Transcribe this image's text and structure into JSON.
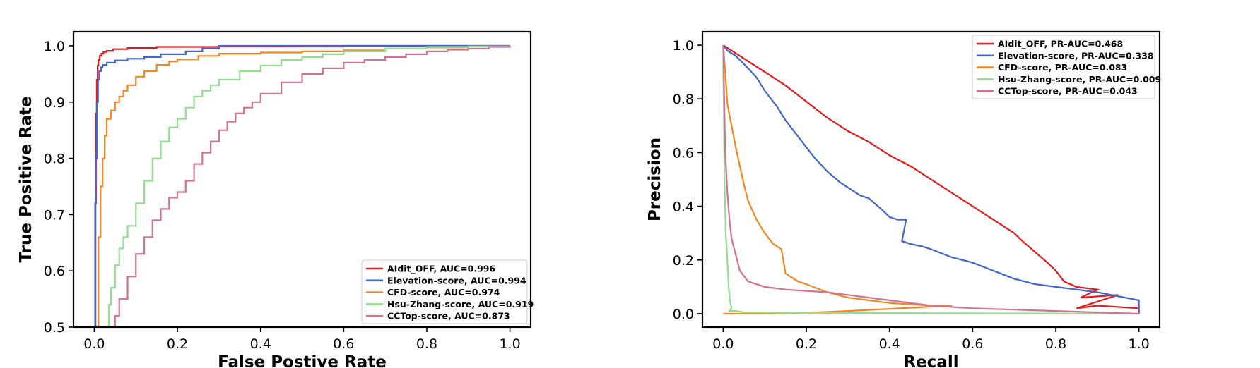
{
  "chart_data": [
    {
      "type": "line",
      "xlabel": "False Postive Rate",
      "ylabel": "True Positive Rate",
      "xlim": [
        -0.05,
        1.05
      ],
      "ylim": [
        0.5,
        1.025
      ],
      "xticks": [
        0.0,
        0.2,
        0.4,
        0.6,
        0.8,
        1.0
      ],
      "xtick_labels": [
        "0.0",
        "0.2",
        "0.4",
        "0.6",
        "0.8",
        "1.0"
      ],
      "yticks": [
        0.5,
        0.6,
        0.7,
        0.8,
        0.9,
        1.0
      ],
      "ytick_labels": [
        "0.5",
        "0.6",
        "0.7",
        "0.8",
        "0.9",
        "1.0"
      ],
      "legend_position": "lower right",
      "step": true,
      "series": [
        {
          "name": "AIdit_OFF, AUC=0.996",
          "color": "#e31a1c",
          "x": [
            0.0,
            0.002,
            0.004,
            0.006,
            0.008,
            0.01,
            0.013,
            0.017,
            0.022,
            0.03,
            0.045,
            0.08,
            0.15,
            0.3,
            0.6,
            1.0
          ],
          "y": [
            0.5,
            0.72,
            0.88,
            0.94,
            0.965,
            0.975,
            0.982,
            0.986,
            0.989,
            0.991,
            0.994,
            0.996,
            0.998,
            0.999,
            1.0,
            1.0
          ]
        },
        {
          "name": "Elevation-score, AUC=0.994",
          "color": "#3e65d0",
          "x": [
            0.0,
            0.003,
            0.006,
            0.009,
            0.012,
            0.016,
            0.02,
            0.03,
            0.05,
            0.08,
            0.12,
            0.16,
            0.22,
            0.26,
            0.3,
            0.5,
            0.75,
            1.0
          ],
          "y": [
            0.5,
            0.8,
            0.9,
            0.94,
            0.955,
            0.962,
            0.966,
            0.97,
            0.974,
            0.977,
            0.98,
            0.985,
            0.99,
            0.995,
            1.0,
            1.0,
            1.0,
            1.0
          ]
        },
        {
          "name": "CFD-score, AUC=0.974",
          "color": "#f5871f",
          "x": [
            0.0,
            0.01,
            0.015,
            0.02,
            0.025,
            0.03,
            0.04,
            0.05,
            0.06,
            0.07,
            0.08,
            0.1,
            0.12,
            0.15,
            0.18,
            0.2,
            0.25,
            0.3,
            0.4,
            0.5,
            0.6,
            0.7,
            0.8,
            0.9,
            1.0
          ],
          "y": [
            0.5,
            0.66,
            0.75,
            0.8,
            0.84,
            0.87,
            0.885,
            0.9,
            0.91,
            0.92,
            0.93,
            0.945,
            0.955,
            0.966,
            0.972,
            0.976,
            0.982,
            0.986,
            0.988,
            0.99,
            0.992,
            0.995,
            0.997,
            0.999,
            1.0
          ]
        },
        {
          "name": "Hsu-Zhang-score, AUC=0.919",
          "color": "#90e090",
          "x": [
            0.03,
            0.035,
            0.04,
            0.05,
            0.06,
            0.07,
            0.08,
            0.1,
            0.12,
            0.14,
            0.16,
            0.18,
            0.2,
            0.22,
            0.24,
            0.26,
            0.28,
            0.3,
            0.35,
            0.4,
            0.45,
            0.5,
            0.55,
            0.6,
            0.7,
            0.8,
            0.9,
            1.0
          ],
          "y": [
            0.5,
            0.54,
            0.57,
            0.61,
            0.64,
            0.66,
            0.68,
            0.72,
            0.76,
            0.8,
            0.83,
            0.855,
            0.87,
            0.89,
            0.91,
            0.92,
            0.93,
            0.94,
            0.955,
            0.965,
            0.975,
            0.98,
            0.985,
            0.99,
            0.995,
            0.998,
            0.999,
            1.0
          ]
        },
        {
          "name": "CCTop-score, AUC=0.873",
          "color": "#d37295",
          "x": [
            0.04,
            0.05,
            0.06,
            0.08,
            0.1,
            0.12,
            0.14,
            0.16,
            0.18,
            0.2,
            0.22,
            0.24,
            0.26,
            0.28,
            0.3,
            0.32,
            0.34,
            0.36,
            0.38,
            0.4,
            0.45,
            0.5,
            0.55,
            0.6,
            0.65,
            0.7,
            0.75,
            0.8,
            0.85,
            0.9,
            0.95,
            1.0
          ],
          "y": [
            0.5,
            0.52,
            0.55,
            0.59,
            0.63,
            0.66,
            0.69,
            0.71,
            0.73,
            0.74,
            0.76,
            0.79,
            0.81,
            0.83,
            0.85,
            0.865,
            0.88,
            0.89,
            0.9,
            0.915,
            0.935,
            0.95,
            0.96,
            0.97,
            0.975,
            0.98,
            0.985,
            0.99,
            0.993,
            0.995,
            0.998,
            1.0
          ]
        }
      ]
    },
    {
      "type": "line",
      "xlabel": "Recall",
      "ylabel": "Precision",
      "xlim": [
        -0.05,
        1.05
      ],
      "ylim": [
        -0.05,
        1.05
      ],
      "xticks": [
        0.0,
        0.2,
        0.4,
        0.6,
        0.8,
        1.0
      ],
      "xtick_labels": [
        "0.0",
        "0.2",
        "0.4",
        "0.6",
        "0.8",
        "1.0"
      ],
      "yticks": [
        0.0,
        0.2,
        0.4,
        0.6,
        0.8,
        1.0
      ],
      "ytick_labels": [
        "0.0",
        "0.2",
        "0.4",
        "0.6",
        "0.8",
        "1.0"
      ],
      "legend_position": "upper right",
      "step": false,
      "series": [
        {
          "name": "AIdit_OFF, PR-AUC=0.468",
          "color": "#e31a1c",
          "x": [
            0.0,
            0.01,
            0.03,
            0.06,
            0.1,
            0.15,
            0.2,
            0.25,
            0.3,
            0.35,
            0.4,
            0.45,
            0.5,
            0.55,
            0.6,
            0.65,
            0.7,
            0.72,
            0.75,
            0.78,
            0.8,
            0.82,
            0.85,
            0.9,
            0.86,
            0.95,
            0.85,
            0.9,
            1.0,
            1.0,
            1.0
          ],
          "y": [
            1.0,
            0.99,
            0.97,
            0.94,
            0.9,
            0.85,
            0.79,
            0.73,
            0.68,
            0.64,
            0.59,
            0.55,
            0.5,
            0.45,
            0.4,
            0.35,
            0.3,
            0.27,
            0.23,
            0.19,
            0.16,
            0.12,
            0.1,
            0.09,
            0.06,
            0.07,
            0.02,
            0.03,
            0.02,
            0.03,
            0.0
          ]
        },
        {
          "name": "Elevation-score, PR-AUC=0.338",
          "color": "#3e65d0",
          "x": [
            0.0,
            0.01,
            0.03,
            0.05,
            0.08,
            0.1,
            0.13,
            0.15,
            0.18,
            0.2,
            0.22,
            0.25,
            0.28,
            0.3,
            0.33,
            0.35,
            0.38,
            0.4,
            0.42,
            0.44,
            0.43,
            0.45,
            0.48,
            0.5,
            0.55,
            0.6,
            0.65,
            0.7,
            0.75,
            0.8,
            0.85,
            0.9,
            1.0,
            1.0,
            1.0
          ],
          "y": [
            1.0,
            0.98,
            0.96,
            0.93,
            0.88,
            0.83,
            0.77,
            0.72,
            0.66,
            0.62,
            0.58,
            0.53,
            0.49,
            0.47,
            0.44,
            0.43,
            0.39,
            0.36,
            0.35,
            0.35,
            0.27,
            0.26,
            0.25,
            0.24,
            0.21,
            0.19,
            0.16,
            0.13,
            0.11,
            0.1,
            0.09,
            0.08,
            0.05,
            0.02,
            0.0
          ]
        },
        {
          "name": "CFD-score, PR-AUC=0.083",
          "color": "#f5871f",
          "x": [
            0.0,
            0.005,
            0.01,
            0.02,
            0.03,
            0.04,
            0.05,
            0.06,
            0.08,
            0.1,
            0.12,
            0.14,
            0.15,
            0.18,
            0.2,
            0.25,
            0.3,
            0.35,
            0.4,
            0.5,
            0.55,
            0.3,
            0.15,
            0.0
          ],
          "y": [
            1.0,
            0.9,
            0.78,
            0.7,
            0.62,
            0.55,
            0.48,
            0.42,
            0.35,
            0.3,
            0.26,
            0.24,
            0.15,
            0.12,
            0.11,
            0.08,
            0.06,
            0.05,
            0.04,
            0.03,
            0.03,
            0.01,
            0.0,
            0.0
          ]
        },
        {
          "name": "Hsu-Zhang-score, PR-AUC=0.009",
          "color": "#90e090",
          "x": [
            0.0,
            0.003,
            0.006,
            0.01,
            0.013,
            0.016,
            0.02,
            0.015,
            0.03,
            0.05,
            0.2,
            0.5,
            1.0
          ],
          "y": [
            0.95,
            0.5,
            0.3,
            0.2,
            0.1,
            0.05,
            0.02,
            0.01,
            0.01,
            0.005,
            0.003,
            0.002,
            0.0
          ]
        },
        {
          "name": "CCTop-score, PR-AUC=0.043",
          "color": "#d37295",
          "x": [
            0.0,
            0.005,
            0.01,
            0.015,
            0.02,
            0.03,
            0.04,
            0.06,
            0.08,
            0.1,
            0.15,
            0.2,
            0.25,
            0.3,
            0.35,
            0.4,
            0.45,
            0.5,
            0.6,
            0.7,
            0.8,
            0.9,
            1.0
          ],
          "y": [
            1.0,
            0.6,
            0.45,
            0.35,
            0.28,
            0.22,
            0.16,
            0.12,
            0.11,
            0.1,
            0.09,
            0.085,
            0.08,
            0.07,
            0.06,
            0.05,
            0.04,
            0.03,
            0.02,
            0.015,
            0.01,
            0.005,
            0.0
          ]
        }
      ]
    }
  ]
}
